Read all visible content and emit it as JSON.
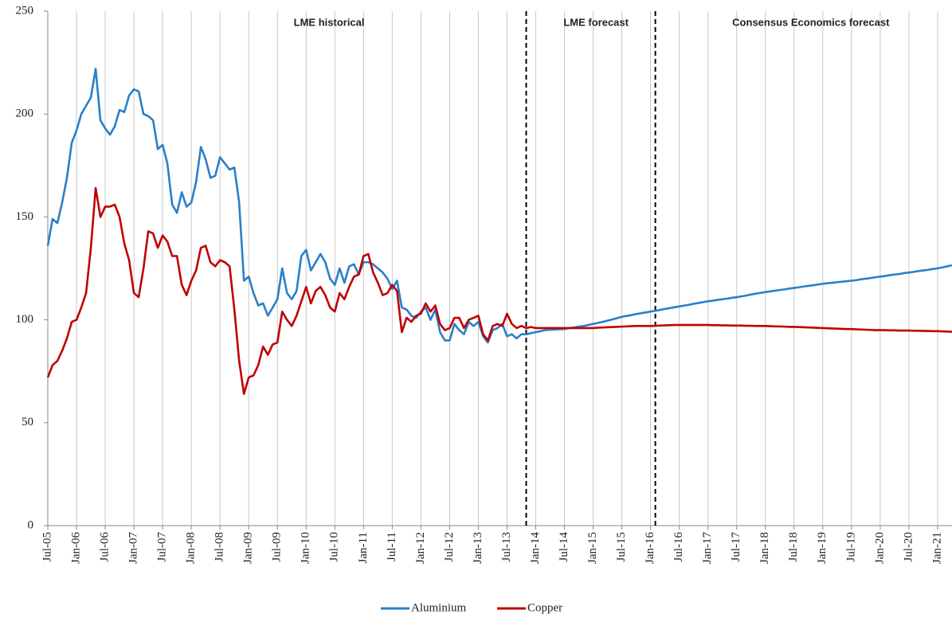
{
  "chart_data": {
    "type": "line",
    "annotations": [
      "LME historical",
      "LME forecast",
      "Consensus Economics forecast"
    ],
    "categories": [
      "Jul-05",
      null,
      null,
      null,
      null,
      null,
      "Jan-06",
      null,
      null,
      null,
      null,
      null,
      "Jul-06",
      null,
      null,
      null,
      null,
      null,
      "Jan-07",
      null,
      null,
      null,
      null,
      null,
      "Jul-07",
      null,
      null,
      null,
      null,
      null,
      "Jan-08",
      null,
      null,
      null,
      null,
      null,
      "Jul-08",
      null,
      null,
      null,
      null,
      null,
      "Jan-09",
      null,
      null,
      null,
      null,
      null,
      "Jul-09",
      null,
      null,
      null,
      null,
      null,
      "Jan-10",
      null,
      null,
      null,
      null,
      null,
      "Jul-10",
      null,
      null,
      null,
      null,
      null,
      "Jan-11",
      null,
      null,
      null,
      null,
      null,
      "Jul-11",
      null,
      null,
      null,
      null,
      null,
      "Jan-12",
      null,
      null,
      null,
      null,
      null,
      "Jul-12",
      null,
      null,
      null,
      null,
      null,
      "Jan-13",
      null,
      null,
      null,
      null,
      null,
      "Jul-13",
      null,
      null,
      null,
      null,
      null,
      "Jan-14",
      null,
      null,
      null,
      null,
      null,
      "Jul-14",
      null,
      null,
      null,
      null,
      null,
      "Jan-15",
      null,
      null,
      null,
      null,
      null,
      "Jul-15",
      null,
      null,
      null,
      null,
      null,
      "Jan-16",
      null,
      null,
      null,
      null,
      null,
      "Jul-16",
      null,
      null,
      null,
      null,
      null,
      "Jan-17",
      null,
      null,
      null,
      null,
      null,
      "Jul-17",
      null,
      null,
      null,
      null,
      null,
      "Jan-18",
      null,
      null,
      null,
      null,
      null,
      "Jul-18",
      null,
      null,
      null,
      null,
      null,
      "Jan-19",
      null,
      null,
      null,
      null,
      null,
      "Jul-19",
      null,
      null,
      null,
      null,
      null,
      "Jan-20",
      null,
      null,
      null,
      null,
      null,
      "Jul-20",
      null,
      null,
      null,
      null,
      null,
      "Jan-21",
      null,
      null,
      null
    ],
    "series": [
      {
        "name": "Aluminium",
        "color": "#2a7fc9",
        "values": [
          136,
          149,
          147,
          157,
          169,
          186,
          192,
          200,
          204,
          208,
          222,
          197,
          193,
          190,
          194,
          202,
          201,
          209,
          212,
          211,
          200,
          199,
          197,
          183,
          185,
          176,
          156,
          152,
          162,
          155,
          157,
          167,
          184,
          178,
          169,
          170,
          179,
          176,
          173,
          174,
          157,
          119,
          121,
          113,
          107,
          108,
          102,
          106,
          110,
          125,
          113,
          110,
          114,
          131,
          134,
          124,
          128,
          132,
          128,
          120,
          117,
          125,
          118,
          126,
          127,
          122,
          128,
          128,
          127,
          125,
          123,
          120,
          115,
          119,
          106,
          105,
          102,
          101,
          104,
          106,
          100,
          105,
          94,
          90,
          90,
          98,
          95,
          93,
          99,
          97,
          99,
          92,
          89,
          95,
          96,
          98,
          92,
          93,
          91,
          93,
          93,
          93.5,
          94,
          94.5,
          95,
          95.2,
          95.3,
          95.4,
          95.5,
          96,
          96.3,
          96.7,
          97,
          97.5,
          98,
          98.5,
          99,
          99.6,
          100.2,
          100.8,
          101.5,
          101.9,
          102.3,
          102.8,
          103.2,
          103.6,
          104,
          104.4,
          104.8,
          105.3,
          105.7,
          106.1,
          106.5,
          106.9,
          107.3,
          107.8,
          108.2,
          108.6,
          109,
          109.3,
          109.7,
          110,
          110.3,
          110.7,
          111,
          111.4,
          111.8,
          112.3,
          112.7,
          113.1,
          113.5,
          113.8,
          114.2,
          114.5,
          114.8,
          115.2,
          115.5,
          115.8,
          116.2,
          116.5,
          116.8,
          117.2,
          117.5,
          117.8,
          118,
          118.3,
          118.5,
          118.8,
          119,
          119.3,
          119.7,
          120,
          120.3,
          120.7,
          121,
          121.3,
          121.7,
          122,
          122.3,
          122.7,
          123,
          123.3,
          123.7,
          124,
          124.3,
          124.7,
          125,
          125.5,
          126,
          126.5
        ]
      },
      {
        "name": "Copper",
        "color": "#c00000",
        "values": [
          72,
          78,
          80,
          85,
          91,
          99,
          100,
          106,
          113,
          135,
          164,
          150,
          155,
          155,
          156,
          150,
          137,
          129,
          113,
          111,
          125,
          143,
          142,
          135,
          141,
          138,
          131,
          131,
          117,
          112,
          119,
          124,
          135,
          136,
          128,
          126,
          129,
          128,
          126,
          105,
          80,
          64,
          72,
          73,
          78,
          87,
          83,
          88,
          89,
          104,
          100,
          97,
          102,
          109,
          116,
          108,
          114,
          116,
          112,
          106,
          104,
          113,
          110,
          116,
          121,
          122,
          131,
          132,
          123,
          118,
          112,
          113,
          117,
          114,
          94,
          101,
          99,
          102,
          103,
          108,
          104,
          107,
          98,
          95,
          96,
          101,
          101,
          96,
          100,
          101,
          102,
          93,
          90,
          97,
          98,
          97,
          103,
          98,
          96,
          97,
          96,
          96.5,
          96,
          96,
          96,
          96,
          96,
          96,
          96,
          96,
          96,
          96,
          96,
          96,
          96,
          96.2,
          96.3,
          96.4,
          96.5,
          96.6,
          96.7,
          96.8,
          96.9,
          97,
          97,
          97,
          97,
          97.1,
          97.2,
          97.3,
          97.4,
          97.5,
          97.5,
          97.5,
          97.5,
          97.5,
          97.5,
          97.5,
          97.5,
          97.4,
          97.4,
          97.3,
          97.3,
          97.2,
          97.2,
          97.2,
          97.1,
          97.1,
          97,
          97,
          97,
          96.9,
          96.8,
          96.8,
          96.7,
          96.6,
          96.6,
          96.5,
          96.4,
          96.3,
          96.2,
          96.1,
          96,
          95.9,
          95.8,
          95.7,
          95.6,
          95.5,
          95.5,
          95.4,
          95.3,
          95.2,
          95.1,
          95,
          95,
          95,
          94.9,
          94.9,
          94.8,
          94.8,
          94.8,
          94.7,
          94.7,
          94.6,
          94.6,
          94.5,
          94.5,
          94.4,
          94.3,
          94.2
        ]
      }
    ],
    "ylim": [
      0,
      250
    ],
    "yticks": [
      0,
      50,
      100,
      150,
      200,
      250
    ],
    "grid": true,
    "legend": "bottom"
  }
}
